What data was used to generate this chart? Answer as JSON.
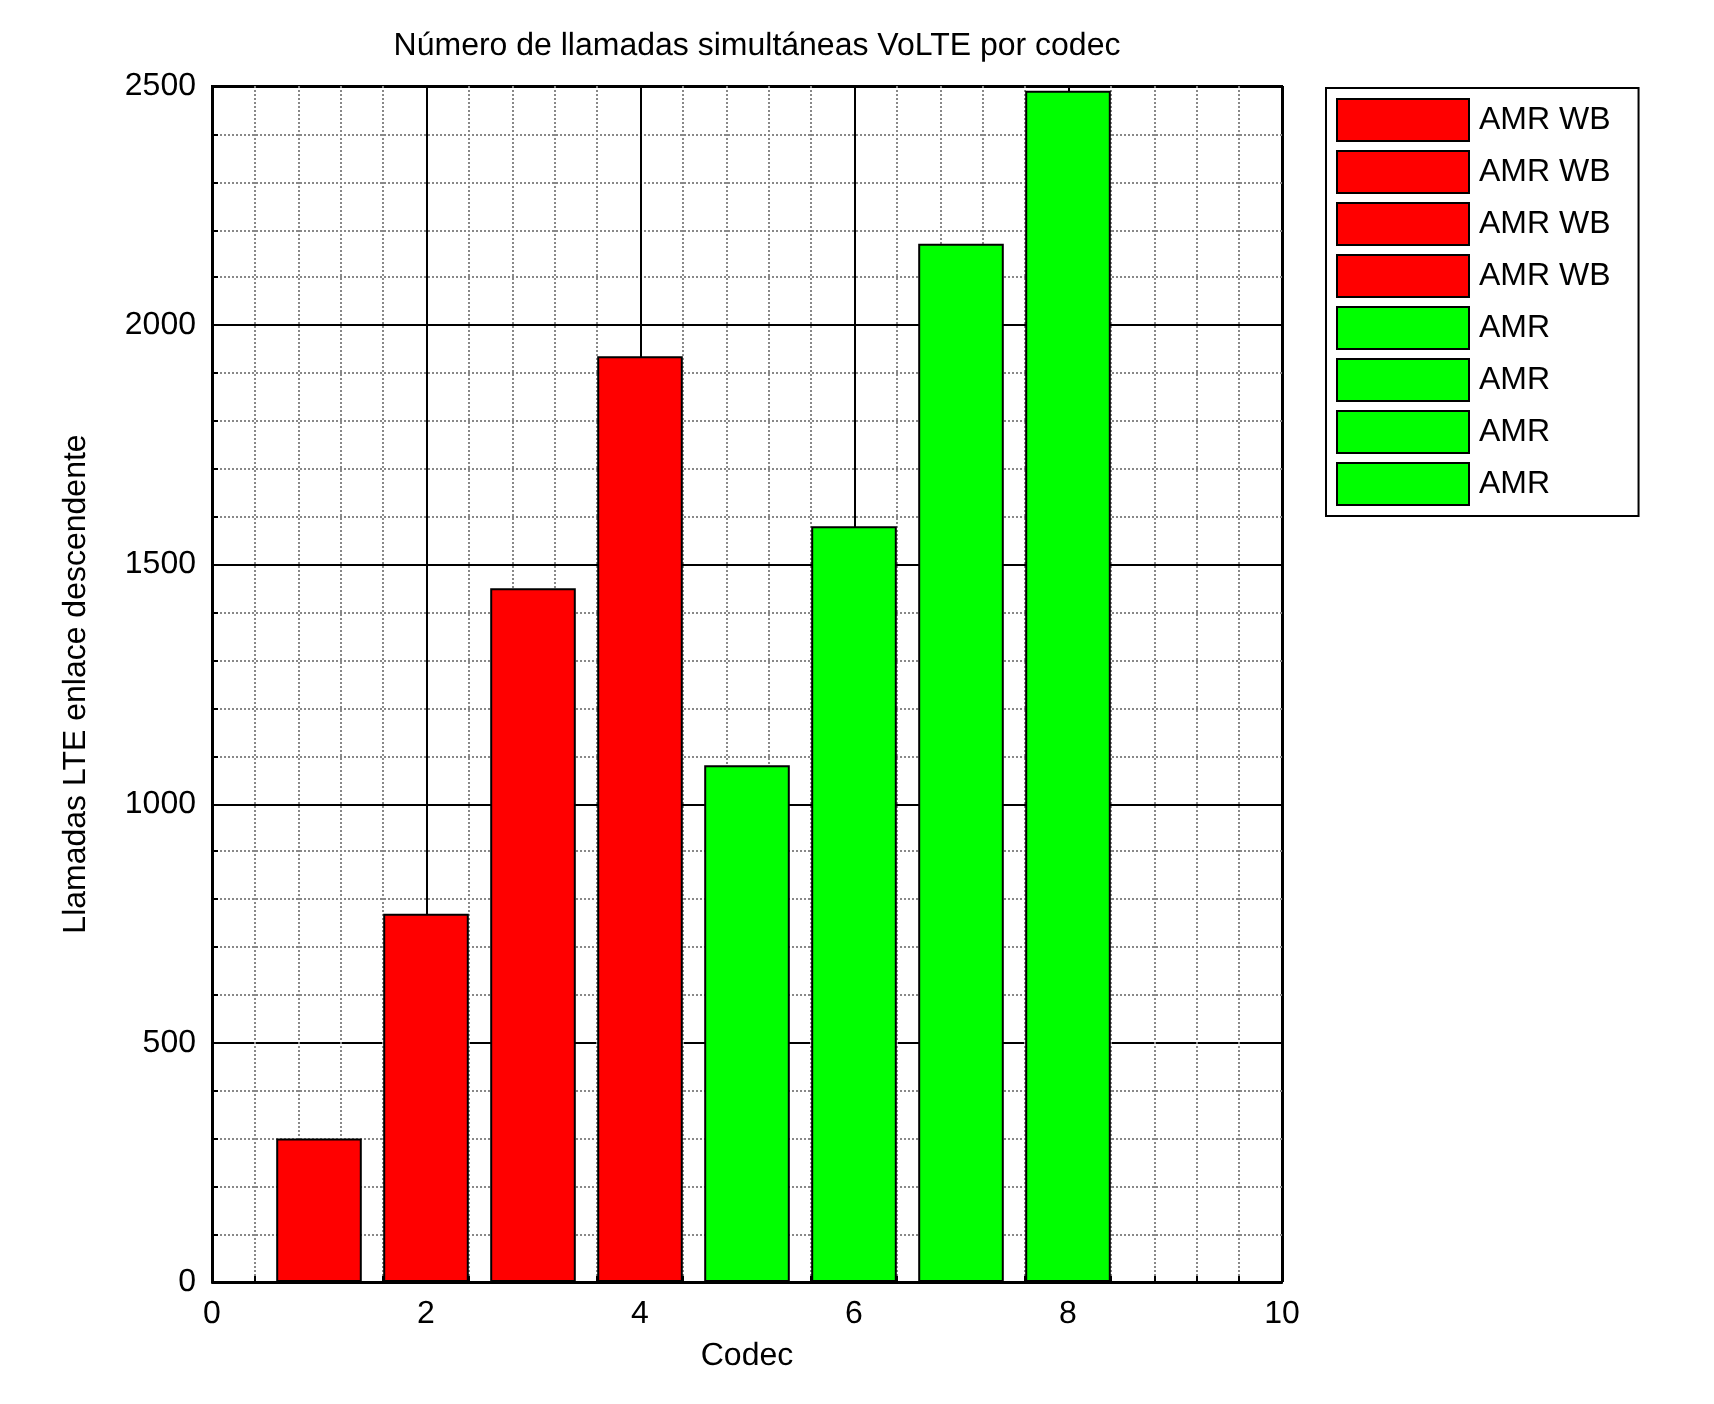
{
  "chart_data": {
    "type": "bar",
    "title": "Número de llamadas simultáneas VoLTE por codec",
    "xlabel": "Codec",
    "ylabel": "Llamadas LTE enlace descendente",
    "xlim": [
      0,
      10
    ],
    "xticks": [
      0,
      2,
      4,
      6,
      8,
      10
    ],
    "ylim": [
      0,
      2500
    ],
    "yticks": [
      0,
      500,
      1000,
      1500,
      2000,
      2500
    ],
    "grid": true,
    "legend": "top right",
    "series": [
      {
        "name": "AMR WB",
        "color": "#ff0000",
        "x": [
          1
        ],
        "values": [
          300
        ]
      },
      {
        "name": "AMR WB",
        "color": "#ff0000",
        "x": [
          2
        ],
        "values": [
          770
        ]
      },
      {
        "name": "AMR WB",
        "color": "#ff0000",
        "x": [
          3
        ],
        "values": [
          1450
        ]
      },
      {
        "name": "AMR WB",
        "color": "#ff0000",
        "x": [
          4
        ],
        "values": [
          1935
        ]
      },
      {
        "name": "AMR",
        "color": "#00ff00",
        "x": [
          5
        ],
        "values": [
          1080
        ]
      },
      {
        "name": "AMR",
        "color": "#00ff00",
        "x": [
          6
        ],
        "values": [
          1580
        ]
      },
      {
        "name": "AMR",
        "color": "#00ff00",
        "x": [
          7
        ],
        "values": [
          2170
        ]
      },
      {
        "name": "AMR",
        "color": "#00ff00",
        "x": [
          8
        ],
        "values": [
          2490
        ]
      }
    ]
  }
}
